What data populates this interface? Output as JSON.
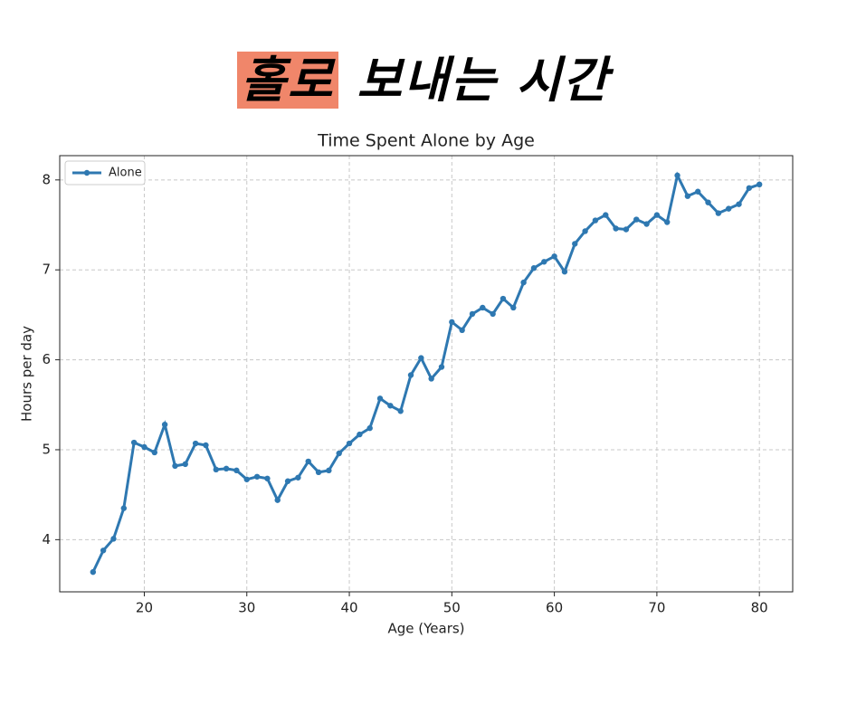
{
  "banner": {
    "highlight": "홀로",
    "rest": "보내는 시간"
  },
  "chart_data": {
    "type": "line",
    "title": "Time Spent Alone by Age",
    "xlabel": "Age (Years)",
    "ylabel": "Hours per day",
    "x": [
      15,
      16,
      17,
      18,
      19,
      20,
      21,
      22,
      23,
      24,
      25,
      26,
      27,
      28,
      29,
      30,
      31,
      32,
      33,
      34,
      35,
      36,
      37,
      38,
      39,
      40,
      41,
      42,
      43,
      44,
      45,
      46,
      47,
      48,
      49,
      50,
      51,
      52,
      53,
      54,
      55,
      56,
      57,
      58,
      59,
      60,
      61,
      62,
      63,
      64,
      65,
      66,
      67,
      68,
      69,
      70,
      71,
      72,
      73,
      74,
      75,
      76,
      77,
      78,
      79,
      80
    ],
    "series": [
      {
        "name": "Alone",
        "color": "#2e78b1",
        "values": [
          3.64,
          3.88,
          4.01,
          4.35,
          5.08,
          5.03,
          4.97,
          5.28,
          4.82,
          4.84,
          5.07,
          5.05,
          4.78,
          4.79,
          4.77,
          4.67,
          4.7,
          4.68,
          4.44,
          4.65,
          4.69,
          4.87,
          4.75,
          4.77,
          4.96,
          5.07,
          5.17,
          5.24,
          5.57,
          5.49,
          5.43,
          5.83,
          6.02,
          5.79,
          5.92,
          6.42,
          6.33,
          6.51,
          6.58,
          6.51,
          6.68,
          6.58,
          6.86,
          7.02,
          7.09,
          7.15,
          6.98,
          7.29,
          7.43,
          7.55,
          7.61,
          7.46,
          7.45,
          7.56,
          7.51,
          7.61,
          7.53,
          8.05,
          7.82,
          7.87,
          7.75,
          7.63,
          7.68,
          7.73,
          7.91,
          7.95
        ]
      }
    ],
    "xlim": [
      11.75,
      83.25
    ],
    "xticks": [
      20,
      30,
      40,
      50,
      60,
      70,
      80
    ],
    "ylim": [
      3.42,
      8.27
    ],
    "yticks": [
      4,
      5,
      6,
      7,
      8
    ],
    "grid": true,
    "legend": "upper left"
  }
}
